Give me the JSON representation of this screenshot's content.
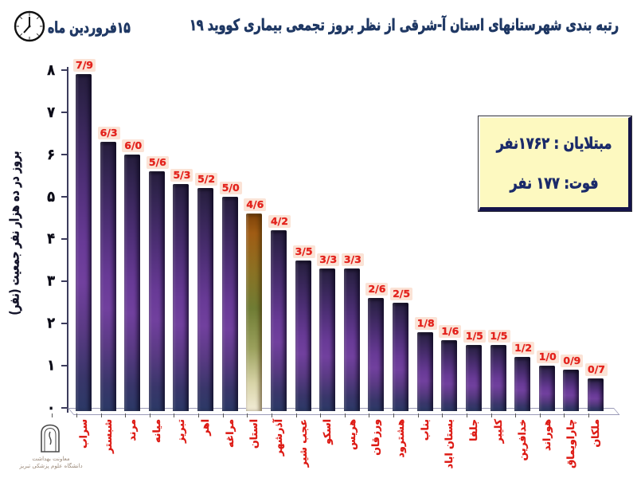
{
  "header": {
    "title": "رتبه بندی شهرستانهای استان آ-شرقی  از نظر بروز تجمعی بیماری کووید ۱۹",
    "date": "۱۵فروردین ماه"
  },
  "info_box": {
    "infected_label": "مبتلایان : ۱۷۶۲نفر",
    "deaths_label": "فوت:  ۱۷۷ نفر"
  },
  "chart_data": {
    "type": "bar",
    "title": "رتبه بندی شهرستانهای استان آ-شرقی از نظر بروز تجمعی بیماری کووید ۱۹",
    "ylabel": "بروز در ده هزار نفر جمعیت (نفر)",
    "xlabel": "",
    "ylim": [
      0,
      8
    ],
    "ytick_labels": [
      "۰",
      "۱",
      "۲",
      "۳",
      "۴",
      "۵",
      "۶",
      "۷",
      "۸"
    ],
    "categories": [
      "سراب",
      "شبستر",
      "مرند",
      "میانه",
      "تبریز",
      "اهر",
      "مراغه",
      "استان",
      "آذرشهر",
      "عجب شیر",
      "اسکو",
      "هریس",
      "ورزقان",
      "هشترود",
      "بناب",
      "بستان اباد",
      "جلفا",
      "کلیبر",
      "خدافرین",
      "هوراند",
      "چاراویماق",
      "ملکان"
    ],
    "values": [
      7.9,
      6.3,
      6.0,
      5.6,
      5.3,
      5.2,
      5.0,
      4.6,
      4.2,
      3.5,
      3.3,
      3.3,
      2.6,
      2.5,
      1.8,
      1.6,
      1.5,
      1.5,
      1.2,
      1.0,
      0.9,
      0.7
    ],
    "value_labels": [
      "7/9",
      "6/3",
      "6/0",
      "5/6",
      "5/3",
      "5/2",
      "5/0",
      "4/6",
      "4/2",
      "3/5",
      "3/3",
      "3/3",
      "2/6",
      "2/5",
      "1/8",
      "1/6",
      "1/5",
      "1/5",
      "1/2",
      "1/0",
      "0/9",
      "0/7"
    ],
    "highlight_index": 7,
    "legend": null,
    "grid": false,
    "colors": {
      "bar_purple_mid": "#71409e",
      "bar_navy_end": "#2b3966",
      "highlight_top": "#a05c14",
      "highlight_bottom": "#f2ecd6",
      "value_label_text": "#e3231d",
      "value_label_bg": "#fbe3d6",
      "axis_text": "#0c0c18",
      "title_text": "#1f3864"
    }
  },
  "footer": {
    "org_line1": "معاونت بهداشت",
    "org_line2": "دانشگاه علوم پزشکی تبریز"
  }
}
